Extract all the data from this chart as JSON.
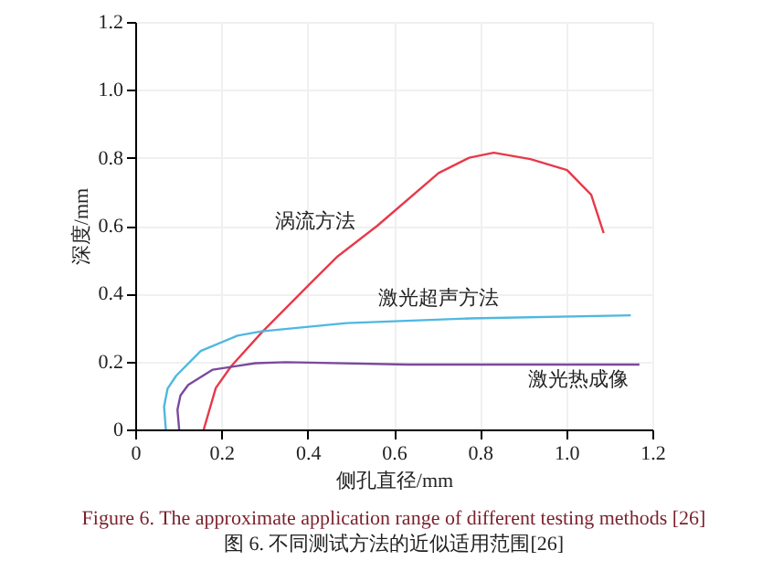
{
  "chart_data": {
    "type": "line",
    "title": "Figure 6. The approximate application range of different testing methods [26]",
    "subtitle": "图 6. 不同测试方法的近似适用范围[26]",
    "xlabel": "侧孔直径/mm",
    "ylabel": "深度/mm",
    "xlim": [
      0,
      1.2
    ],
    "ylim": [
      0,
      1.2
    ],
    "xticks": [
      0,
      0.2,
      0.4,
      0.6,
      0.8,
      {
        "value": 1,
        "label": "1.0"
      },
      1.2
    ],
    "yticks": [
      0,
      0.2,
      0.4,
      0.6,
      0.8,
      {
        "value": 1,
        "label": "1.0"
      },
      1.2
    ],
    "grid": true,
    "legend": false,
    "series": [
      {
        "name": "涡流方法",
        "color": "#e8394a",
        "x": [
          0.159,
          0.187,
          0.222,
          0.293,
          0.407,
          0.47,
          0.562,
          0.704,
          0.775,
          0.832,
          0.917,
          1.002,
          1.058,
          1.087
        ],
        "values": [
          0,
          0.122,
          0.185,
          0.285,
          0.431,
          0.51,
          0.6,
          0.755,
          0.8,
          0.815,
          0.796,
          0.764,
          0.691,
          0.578
        ]
      },
      {
        "name": "激光超声方法",
        "color": "#4fb8e0",
        "x": [
          0.071,
          0.067,
          0.075,
          0.095,
          0.152,
          0.237,
          0.293,
          0.49,
          0.775,
          1.15
        ],
        "values": [
          0,
          0.067,
          0.12,
          0.158,
          0.231,
          0.276,
          0.289,
          0.313,
          0.327,
          0.336
        ]
      },
      {
        "name": "激光热成像",
        "color": "#7a4a9e",
        "x": [
          0.102,
          0.098,
          0.105,
          0.123,
          0.18,
          0.279,
          0.35,
          0.633,
          1.17
        ],
        "values": [
          0,
          0.058,
          0.1,
          0.131,
          0.176,
          0.195,
          0.198,
          0.191,
          0.191
        ]
      }
    ]
  }
}
